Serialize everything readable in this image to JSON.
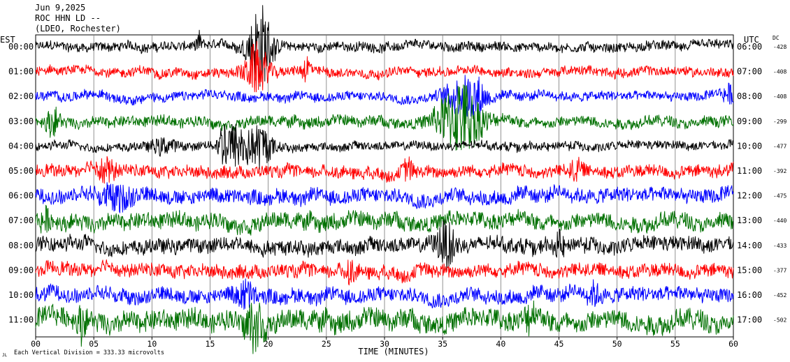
{
  "header": {
    "date": "Jun 9,2025",
    "station": "ROC HHN LD --",
    "network": "(LDEO, Rochester)"
  },
  "chart_data": {
    "type": "line",
    "title": "Jun 9,2025",
    "xlabel": "TIME (MINUTES)",
    "ylabel_left": "EST",
    "ylabel_right": "UTC",
    "dc_label": "DC",
    "xlim": [
      0,
      60
    ],
    "x_ticks": [
      "00",
      "05",
      "10",
      "15",
      "20",
      "25",
      "30",
      "35",
      "40",
      "45",
      "50",
      "55",
      "60"
    ],
    "grid": true,
    "footnote": "Each Vertical Division =  333.33 microvolts",
    "footnote_mark": "JL",
    "colors": {
      "black": "#000000",
      "red": "#ff0000",
      "blue": "#0000ff",
      "green": "#007000"
    },
    "traces": [
      {
        "est": "00:00",
        "utc": "06:00",
        "dc": "-428",
        "color": "black",
        "noise": 0.35,
        "events": [
          {
            "t": 19.3,
            "amp": 3.2,
            "dur": 1.0
          },
          {
            "t": 14.0,
            "amp": 0.9,
            "dur": 0.2
          }
        ]
      },
      {
        "est": "01:00",
        "utc": "07:00",
        "dc": "-408",
        "color": "red",
        "noise": 0.35,
        "events": [
          {
            "t": 19.0,
            "amp": 1.8,
            "dur": 1.0
          },
          {
            "t": 23.3,
            "amp": 0.9,
            "dur": 0.4
          }
        ]
      },
      {
        "est": "02:00",
        "utc": "08:00",
        "dc": "-408",
        "color": "blue",
        "noise": 0.35,
        "events": [
          {
            "t": 36.7,
            "amp": 1.3,
            "dur": 1.5
          },
          {
            "t": 38.0,
            "amp": 0.8,
            "dur": 0.8
          },
          {
            "t": 59.6,
            "amp": 0.6,
            "dur": 0.5
          }
        ]
      },
      {
        "est": "03:00",
        "utc": "09:00",
        "dc": "-299",
        "color": "green",
        "noise": 0.4,
        "events": [
          {
            "t": 1.5,
            "amp": 0.9,
            "dur": 0.6
          },
          {
            "t": 36.5,
            "amp": 2.8,
            "dur": 1.8
          }
        ]
      },
      {
        "est": "04:00",
        "utc": "10:00",
        "dc": "-477",
        "color": "black",
        "noise": 0.32,
        "events": [
          {
            "t": 16.3,
            "amp": 1.8,
            "dur": 0.6
          },
          {
            "t": 17.5,
            "amp": 1.6,
            "dur": 0.8
          },
          {
            "t": 19.3,
            "amp": 1.6,
            "dur": 1.0
          },
          {
            "t": 11.0,
            "amp": 0.5,
            "dur": 1.0
          }
        ]
      },
      {
        "est": "05:00",
        "utc": "11:00",
        "dc": "-392",
        "color": "red",
        "noise": 0.45,
        "events": [
          {
            "t": 6.0,
            "amp": 0.8,
            "dur": 0.8
          },
          {
            "t": 32.0,
            "amp": 0.7,
            "dur": 0.4
          },
          {
            "t": 46.5,
            "amp": 0.7,
            "dur": 0.5
          }
        ]
      },
      {
        "est": "06:00",
        "utc": "12:00",
        "dc": "-475",
        "color": "blue",
        "noise": 0.55,
        "events": [
          {
            "t": 7.0,
            "amp": 0.7,
            "dur": 1.5
          }
        ]
      },
      {
        "est": "07:00",
        "utc": "13:00",
        "dc": "-440",
        "color": "green",
        "noise": 0.6,
        "events": [
          {
            "t": 0.8,
            "amp": 0.7,
            "dur": 0.4
          }
        ]
      },
      {
        "est": "08:00",
        "utc": "14:00",
        "dc": "-433",
        "color": "black",
        "noise": 0.55,
        "events": [
          {
            "t": 35.3,
            "amp": 1.5,
            "dur": 0.8
          },
          {
            "t": 45.0,
            "amp": 0.8,
            "dur": 0.4
          }
        ]
      },
      {
        "est": "09:00",
        "utc": "15:00",
        "dc": "-377",
        "color": "red",
        "noise": 0.5,
        "events": [
          {
            "t": 27.0,
            "amp": 0.7,
            "dur": 0.5
          }
        ]
      },
      {
        "est": "10:00",
        "utc": "16:00",
        "dc": "-452",
        "color": "blue",
        "noise": 0.55,
        "events": [
          {
            "t": 18.0,
            "amp": 0.9,
            "dur": 0.8
          },
          {
            "t": 48.0,
            "amp": 0.6,
            "dur": 0.6
          }
        ]
      },
      {
        "est": "11:00",
        "utc": "17:00",
        "dc": "-502",
        "color": "green",
        "noise": 0.75,
        "events": [
          {
            "t": 4.0,
            "amp": 1.2,
            "dur": 0.3
          },
          {
            "t": 18.5,
            "amp": 1.5,
            "dur": 0.5
          },
          {
            "t": 19.3,
            "amp": 1.4,
            "dur": 0.4
          },
          {
            "t": 42.5,
            "amp": 1.0,
            "dur": 0.4
          }
        ]
      }
    ]
  }
}
